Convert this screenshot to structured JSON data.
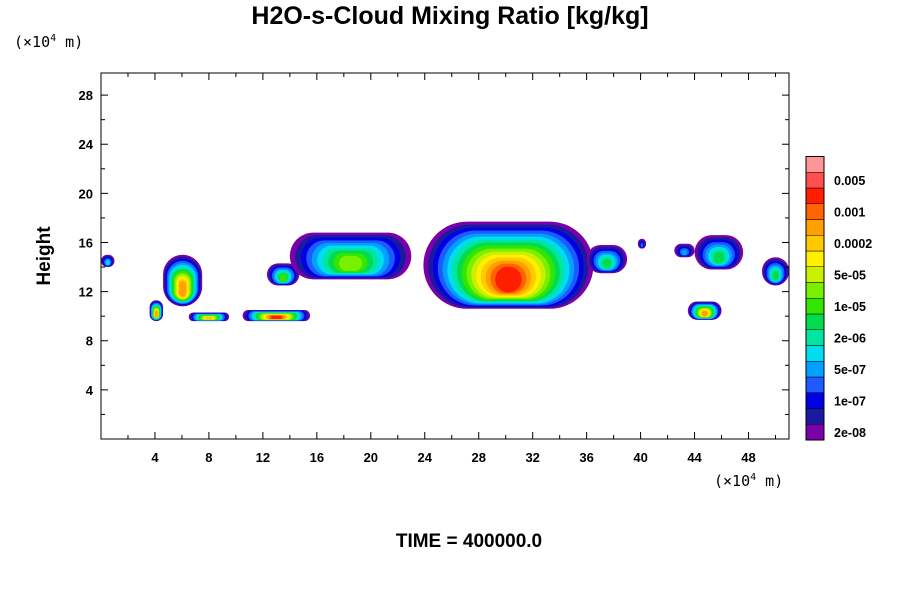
{
  "chart_data": {
    "type": "heatmap",
    "title": "H2O-s-Cloud Mixing Ratio [kg/kg]",
    "ylabel": "Height",
    "x_unit": "(×10",
    "x_unit_exp": "4",
    "x_unit_end": " m)",
    "y_unit": "(×10",
    "y_unit_exp": "4",
    "y_unit_end": " m)",
    "footer": "TIME = 400000.0",
    "xlim": [
      0,
      51
    ],
    "ylim": [
      0,
      29.8
    ],
    "x_ticks": [
      "4",
      "8",
      "12",
      "16",
      "20",
      "24",
      "28",
      "32",
      "36",
      "40",
      "44",
      "48"
    ],
    "y_ticks": [
      "4",
      "8",
      "12",
      "16",
      "20",
      "24",
      "28"
    ],
    "colorbar": {
      "levels": [
        "2e-08",
        "",
        "1e-07",
        "",
        "5e-07",
        "",
        "2e-06",
        "",
        "1e-05",
        "",
        "5e-05",
        "",
        "0.0002",
        "",
        "0.001",
        "",
        "0.005",
        ""
      ],
      "colors": [
        "#7a00aa",
        "#1a1aa0",
        "#0000e6",
        "#1e5aff",
        "#00a0ff",
        "#00dcf0",
        "#00e6a0",
        "#00dc50",
        "#32e600",
        "#78f000",
        "#c8f000",
        "#fff000",
        "#ffc800",
        "#ffa000",
        "#ff6400",
        "#ff1e00",
        "#ff5050",
        "#ff9696"
      ]
    },
    "cloud_bands": [
      {
        "x_start": 0.0,
        "x_end": 1.0,
        "y_bottom": 14.0,
        "y_top": 15.0,
        "max_level": 5
      },
      {
        "x_start": 3.6,
        "x_end": 4.6,
        "y_bottom": 9.6,
        "y_top": 11.3,
        "max_level": 13
      },
      {
        "x_start": 4.6,
        "x_end": 7.5,
        "y_bottom": 10.8,
        "y_top": 15.0,
        "max_level": 13
      },
      {
        "x_start": 6.5,
        "x_end": 9.5,
        "y_bottom": 9.6,
        "y_top": 10.3,
        "max_level": 12
      },
      {
        "x_start": 10.5,
        "x_end": 15.5,
        "y_bottom": 9.6,
        "y_top": 10.5,
        "max_level": 15
      },
      {
        "x_start": 12.3,
        "x_end": 14.7,
        "y_bottom": 12.5,
        "y_top": 14.3,
        "max_level": 8
      },
      {
        "x_start": 14.0,
        "x_end": 23.0,
        "y_bottom": 13.0,
        "y_top": 16.8,
        "max_level": 9
      },
      {
        "x_start": 23.9,
        "x_end": 36.5,
        "y_bottom": 10.6,
        "y_top": 17.7,
        "max_level": 15
      },
      {
        "x_start": 36.0,
        "x_end": 39.0,
        "y_bottom": 13.5,
        "y_top": 15.8,
        "max_level": 7
      },
      {
        "x_start": 39.8,
        "x_end": 40.4,
        "y_bottom": 15.5,
        "y_top": 16.3,
        "max_level": 3
      },
      {
        "x_start": 42.5,
        "x_end": 44.0,
        "y_bottom": 14.8,
        "y_top": 15.9,
        "max_level": 4
      },
      {
        "x_start": 44.0,
        "x_end": 47.6,
        "y_bottom": 13.8,
        "y_top": 16.6,
        "max_level": 7
      },
      {
        "x_start": 43.5,
        "x_end": 46.0,
        "y_bottom": 9.7,
        "y_top": 11.2,
        "max_level": 13
      },
      {
        "x_start": 49.0,
        "x_end": 51.0,
        "y_bottom": 12.5,
        "y_top": 14.8,
        "max_level": 7
      }
    ]
  }
}
